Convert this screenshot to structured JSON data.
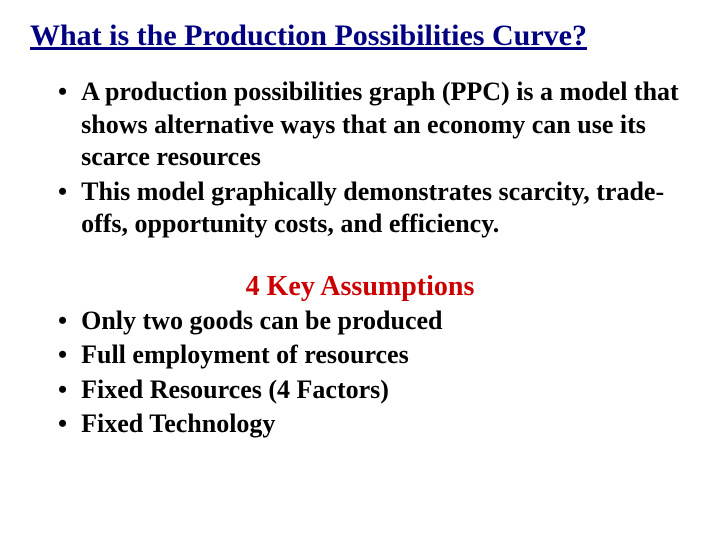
{
  "title": "What is the Production Possibilities Curve?",
  "colors": {
    "title_color": "#000080",
    "body_color": "#000000",
    "subheading_color": "#cc0000",
    "background": "#ffffff"
  },
  "typography": {
    "family": "Times New Roman",
    "title_fontsize": 30,
    "body_fontsize": 26,
    "subheading_fontsize": 28,
    "title_weight": "bold",
    "body_weight": "bold",
    "title_underline": true
  },
  "bullets_top": [
    "A production possibilities graph (PPC) is a model that shows alternative ways that an economy can use its scarce resources",
    "This model graphically demonstrates scarcity, trade-offs, opportunity costs, and efficiency."
  ],
  "subheading": "4 Key Assumptions",
  "bullets_bottom": [
    "Only two goods can be produced",
    "Full employment of resources",
    "Fixed Resources (4 Factors)",
    "Fixed Technology"
  ],
  "bullet_char": "•"
}
